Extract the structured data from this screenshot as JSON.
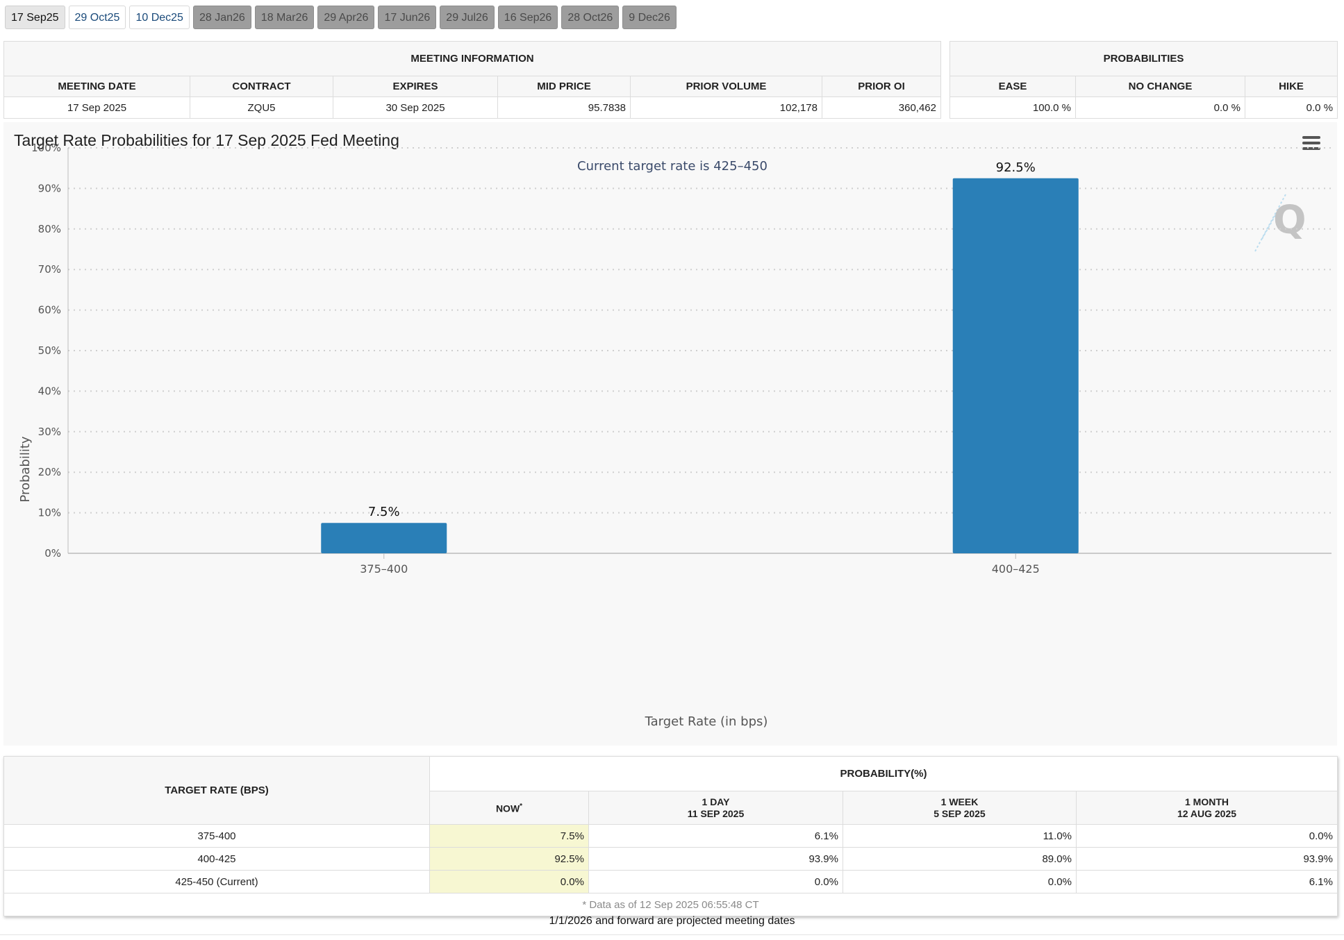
{
  "tabs": [
    {
      "label": "17 Sep25",
      "state": "active"
    },
    {
      "label": "29 Oct25",
      "state": "link"
    },
    {
      "label": "10 Dec25",
      "state": "link"
    },
    {
      "label": "28 Jan26",
      "state": "proj"
    },
    {
      "label": "18 Mar26",
      "state": "proj"
    },
    {
      "label": "29 Apr26",
      "state": "proj"
    },
    {
      "label": "17 Jun26",
      "state": "proj"
    },
    {
      "label": "29 Jul26",
      "state": "proj"
    },
    {
      "label": "16 Sep26",
      "state": "proj"
    },
    {
      "label": "28 Oct26",
      "state": "proj"
    },
    {
      "label": "9 Dec26",
      "state": "proj"
    }
  ],
  "meeting_info": {
    "title": "MEETING INFORMATION",
    "headers": [
      "MEETING DATE",
      "CONTRACT",
      "EXPIRES",
      "MID PRICE",
      "PRIOR VOLUME",
      "PRIOR OI"
    ],
    "row": [
      "17 Sep 2025",
      "ZQU5",
      "30 Sep 2025",
      "95.7838",
      "102,178",
      "360,462"
    ]
  },
  "probabilities": {
    "title": "PROBABILITIES",
    "headers": [
      "EASE",
      "NO CHANGE",
      "HIKE"
    ],
    "row": [
      "100.0 %",
      "0.0 %",
      "0.0 %"
    ]
  },
  "chart_data": {
    "type": "bar",
    "title": "Target Rate Probabilities for 17 Sep 2025 Fed Meeting",
    "subtitle": "Current target rate is 425–450",
    "xlabel": "Target Rate (in bps)",
    "ylabel": "Probability",
    "categories": [
      "375–400",
      "400–425"
    ],
    "values": [
      7.5,
      92.5
    ],
    "data_labels": [
      "7.5%",
      "92.5%"
    ],
    "ylim": [
      0,
      100
    ],
    "yticks": [
      "0%",
      "10%",
      "20%",
      "30%",
      "40%",
      "50%",
      "60%",
      "70%",
      "80%",
      "90%",
      "100%"
    ],
    "grid": true,
    "bar_color": "#2a7fb7",
    "menu_icon": "hamburger-menu-icon",
    "watermark_icon": "q-logo-icon"
  },
  "rates_table": {
    "col_header": "TARGET RATE (BPS)",
    "group_header": "PROBABILITY(%)",
    "subheaders": [
      {
        "label": "NOW",
        "sup": "*",
        "date": ""
      },
      {
        "label": "1 DAY",
        "sup": "",
        "date": "11 SEP 2025"
      },
      {
        "label": "1 WEEK",
        "sup": "",
        "date": "5 SEP 2025"
      },
      {
        "label": "1 MONTH",
        "sup": "",
        "date": "12 AUG 2025"
      }
    ],
    "rows": [
      {
        "rate": "375-400",
        "values": [
          "7.5%",
          "6.1%",
          "11.0%",
          "0.0%"
        ]
      },
      {
        "rate": "400-425",
        "values": [
          "92.5%",
          "93.9%",
          "89.0%",
          "93.9%"
        ]
      },
      {
        "rate": "425-450 (Current)",
        "values": [
          "0.0%",
          "0.0%",
          "0.0%",
          "6.1%"
        ]
      }
    ],
    "footnote": "* Data as of 12 Sep 2025 06:55:48 CT"
  },
  "projected_note": "1/1/2026 and forward are projected meeting dates"
}
